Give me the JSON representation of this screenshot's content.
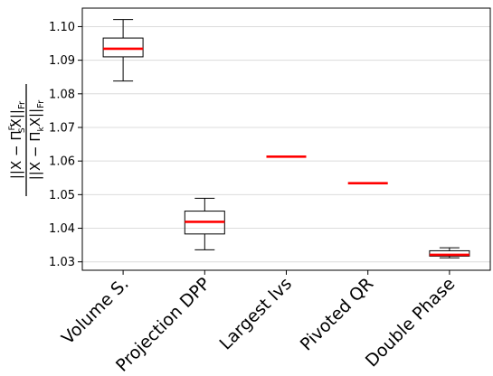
{
  "chart_data": {
    "type": "box",
    "categories": [
      "Volume S.",
      "Projection DPP",
      "Largest lvs",
      "Pivoted QR",
      "Double Phase"
    ],
    "ylabel": {
      "numerator": "||X − Π",
      "numerator_sup": "Fr",
      "numerator_sub": "S",
      "numerator_end": "X||",
      "numerator_norm": "Fr",
      "denominator": "||X − Π",
      "denominator_sub": "k",
      "denominator_end": "X||",
      "denominator_norm": "Fr"
    },
    "ylim": [
      1.0275,
      1.1055
    ],
    "yticks": [
      1.03,
      1.04,
      1.05,
      1.06,
      1.07,
      1.08,
      1.09,
      1.1
    ],
    "ytick_labels": [
      "1.03",
      "1.04",
      "1.05",
      "1.06",
      "1.07",
      "1.08",
      "1.09",
      "1.10"
    ],
    "grid": "horizontal",
    "median_color": "#ff0000",
    "box_color": "#000000",
    "boxes": [
      {
        "whisker_low": 1.0838,
        "q1": 1.091,
        "median": 1.0934,
        "q3": 1.0966,
        "whisker_high": 1.1021
      },
      {
        "whisker_low": 1.0336,
        "q1": 1.0383,
        "median": 1.0419,
        "q3": 1.0451,
        "whisker_high": 1.0489
      },
      {
        "whisker_low": 1.0613,
        "q1": 1.0613,
        "median": 1.0613,
        "q3": 1.0613,
        "whisker_high": 1.0613
      },
      {
        "whisker_low": 1.0534,
        "q1": 1.0534,
        "median": 1.0534,
        "q3": 1.0534,
        "whisker_high": 1.0534
      },
      {
        "whisker_low": 1.0312,
        "q1": 1.0317,
        "median": 1.0321,
        "q3": 1.0333,
        "whisker_high": 1.0342
      }
    ]
  }
}
